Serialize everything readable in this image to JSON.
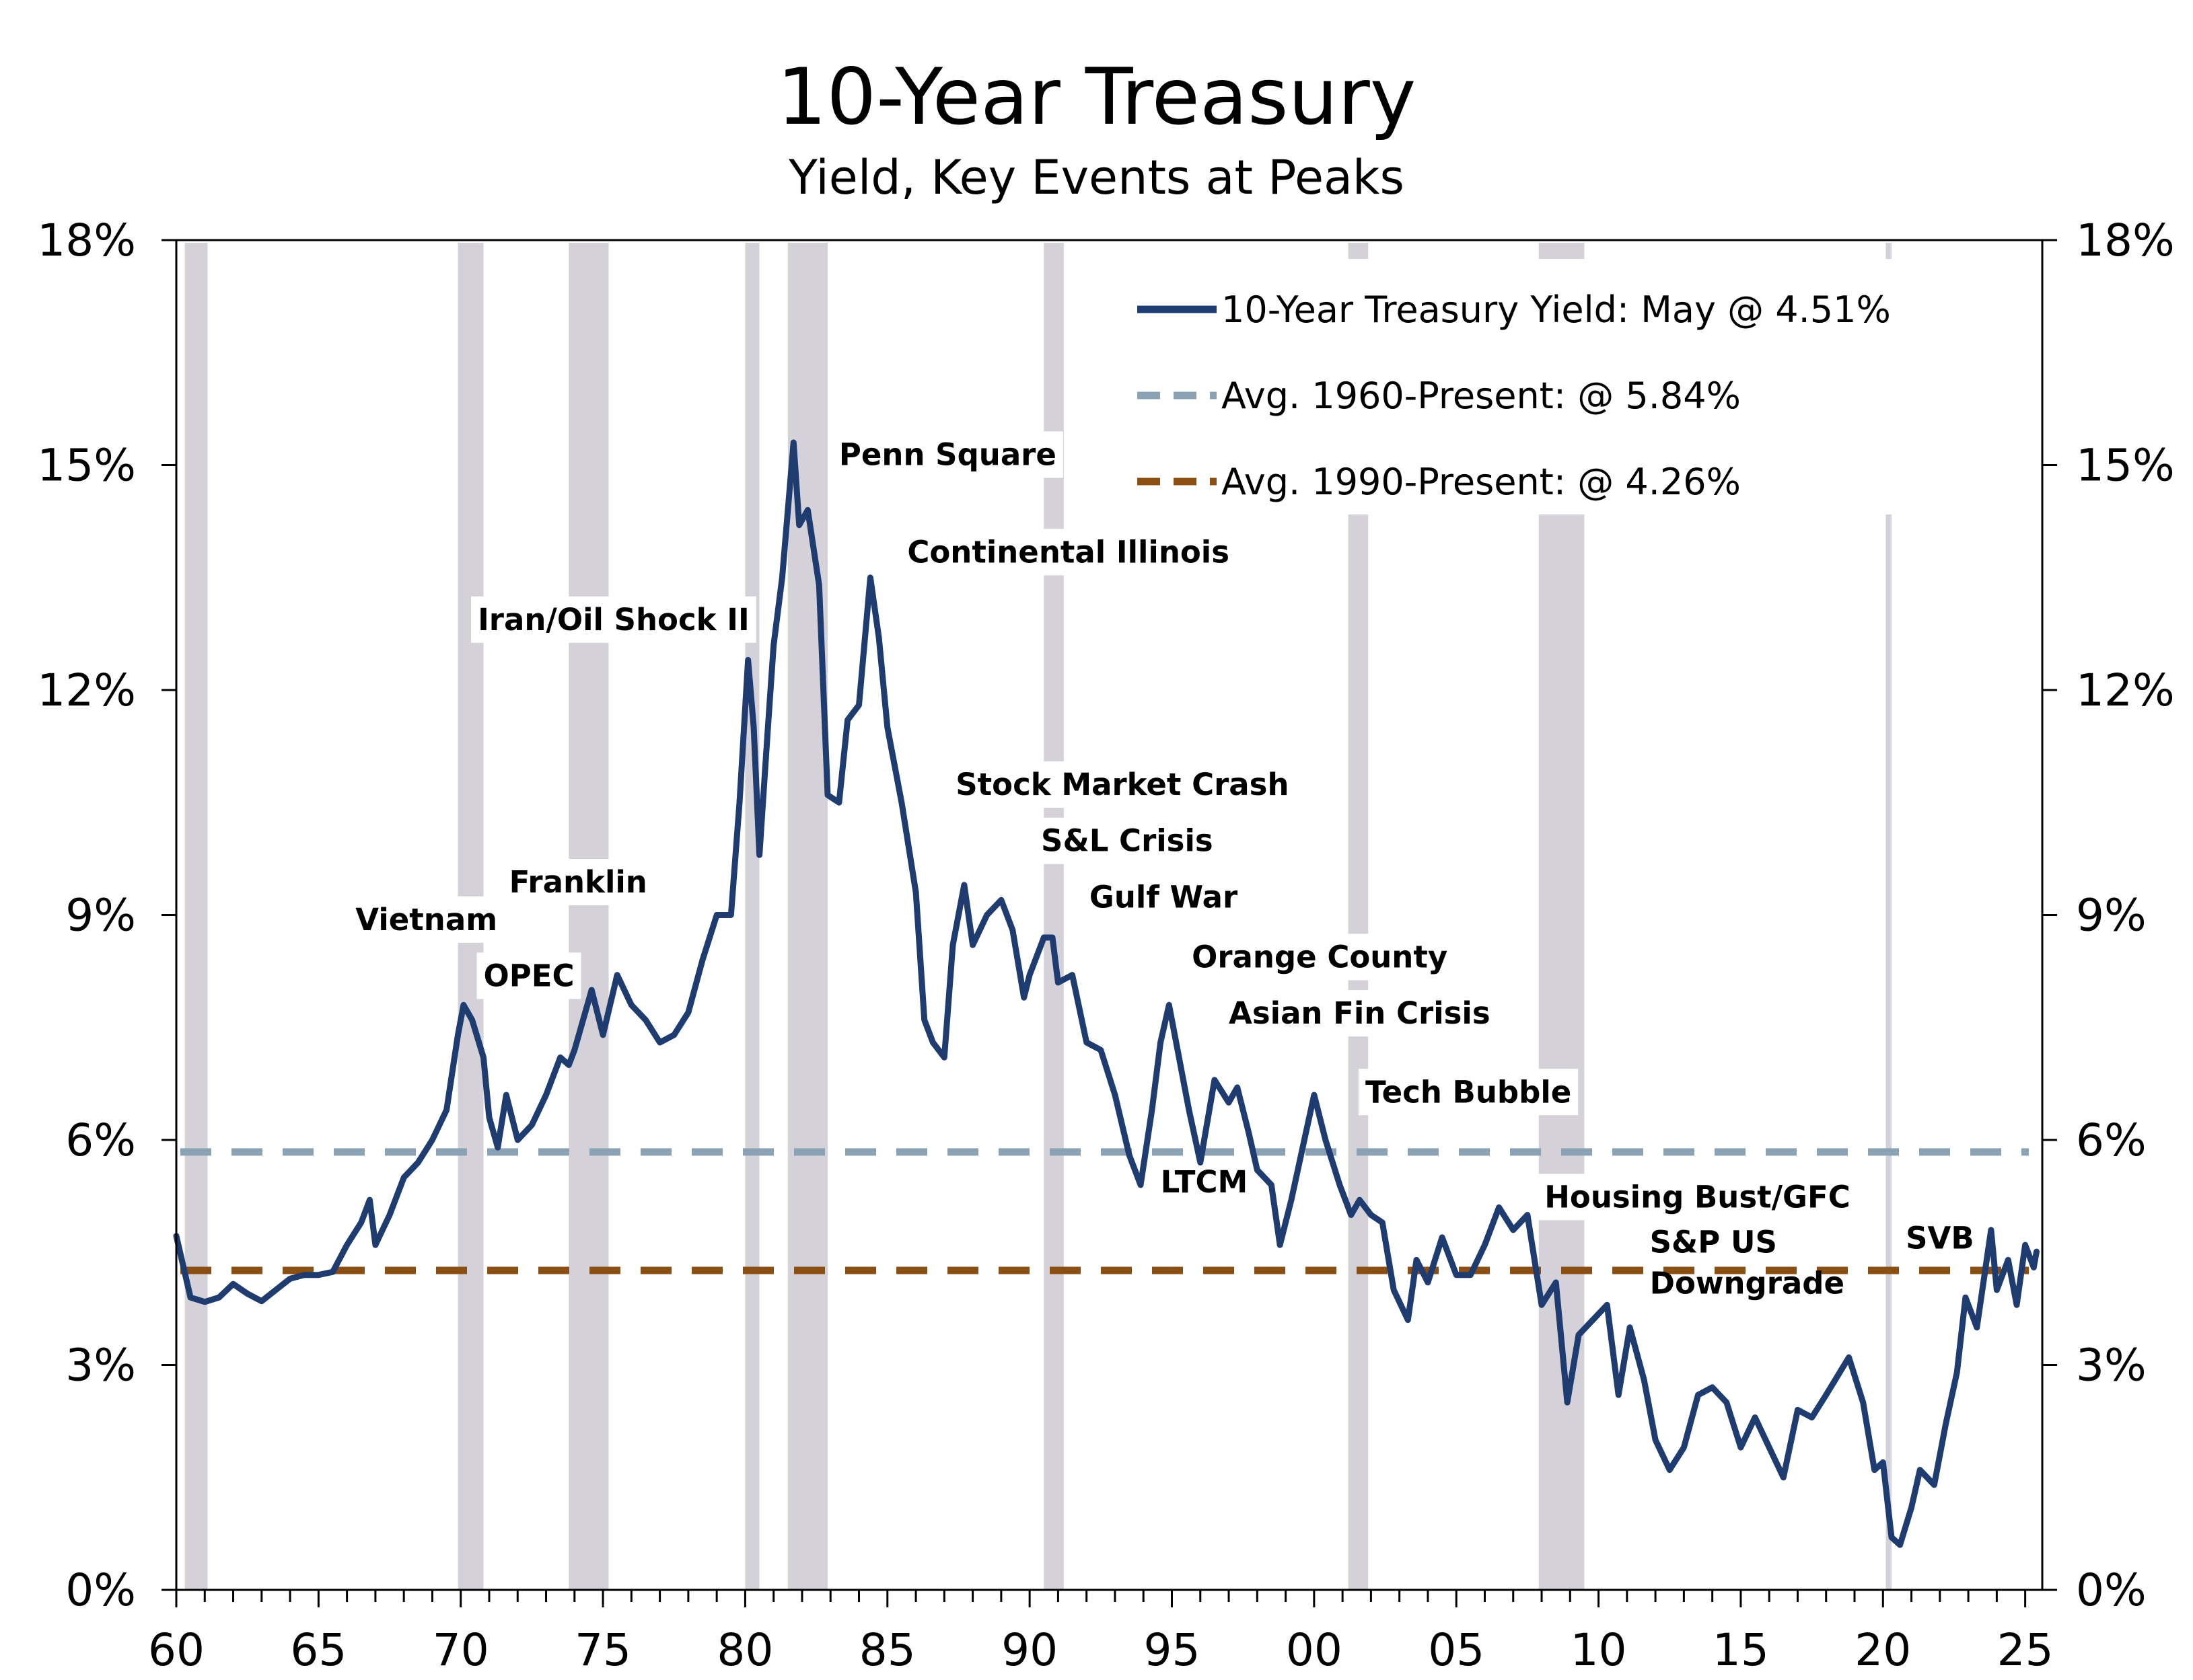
{
  "chart_data": {
    "type": "line",
    "title": "10-Year Treasury",
    "subtitle": "Yield, Key Events at Peaks",
    "xlabel": "",
    "ylabel": "",
    "xlim": [
      1960,
      2025.6
    ],
    "ylim": [
      0,
      18
    ],
    "x_ticks": [
      1960,
      1965,
      1970,
      1975,
      1980,
      1985,
      1990,
      1995,
      2000,
      2005,
      2010,
      2015,
      2020,
      2025
    ],
    "x_tick_labels": [
      "60",
      "65",
      "70",
      "75",
      "80",
      "85",
      "90",
      "95",
      "00",
      "05",
      "10",
      "15",
      "20",
      "25"
    ],
    "y_ticks": [
      0,
      3,
      6,
      9,
      12,
      15,
      18
    ],
    "y_tick_labels": [
      "0%",
      "3%",
      "6%",
      "9%",
      "12%",
      "15%",
      "18%"
    ],
    "legend_position": "top-right",
    "grid": false,
    "colors": {
      "yield_line": "#1f3c70",
      "avg_1960": "#8aa2b4",
      "avg_1990": "#8b4f14",
      "recession": "#d5d1d9"
    },
    "recessions": [
      [
        1960.3,
        1961.1
      ],
      [
        1969.9,
        1970.8
      ],
      [
        1973.8,
        1975.2
      ],
      [
        1980.0,
        1980.5
      ],
      [
        1981.5,
        1982.9
      ],
      [
        1990.5,
        1991.2
      ],
      [
        2001.2,
        2001.9
      ],
      [
        2007.9,
        2009.5
      ],
      [
        2020.1,
        2020.3
      ]
    ],
    "series": [
      {
        "name": "10-Year Treasury Yield: May @ 4.51%",
        "style": "solid",
        "points": [
          [
            1960.0,
            4.72
          ],
          [
            1960.5,
            3.9
          ],
          [
            1961.0,
            3.84
          ],
          [
            1961.5,
            3.9
          ],
          [
            1962.0,
            4.08
          ],
          [
            1962.5,
            3.95
          ],
          [
            1963.0,
            3.85
          ],
          [
            1963.5,
            4.0
          ],
          [
            1964.0,
            4.15
          ],
          [
            1964.5,
            4.2
          ],
          [
            1965.0,
            4.2
          ],
          [
            1965.5,
            4.24
          ],
          [
            1966.0,
            4.6
          ],
          [
            1966.5,
            4.9
          ],
          [
            1966.8,
            5.2
          ],
          [
            1967.0,
            4.6
          ],
          [
            1967.5,
            5.0
          ],
          [
            1968.0,
            5.5
          ],
          [
            1968.5,
            5.7
          ],
          [
            1969.0,
            6.0
          ],
          [
            1969.5,
            6.4
          ],
          [
            1969.9,
            7.4
          ],
          [
            1970.1,
            7.8
          ],
          [
            1970.4,
            7.6
          ],
          [
            1970.8,
            7.1
          ],
          [
            1971.0,
            6.3
          ],
          [
            1971.3,
            5.9
          ],
          [
            1971.6,
            6.6
          ],
          [
            1972.0,
            6.0
          ],
          [
            1972.5,
            6.2
          ],
          [
            1973.0,
            6.6
          ],
          [
            1973.5,
            7.1
          ],
          [
            1973.8,
            7.0
          ],
          [
            1974.0,
            7.2
          ],
          [
            1974.6,
            8.0
          ],
          [
            1975.0,
            7.4
          ],
          [
            1975.5,
            8.2
          ],
          [
            1976.0,
            7.8
          ],
          [
            1976.5,
            7.6
          ],
          [
            1977.0,
            7.3
          ],
          [
            1977.5,
            7.4
          ],
          [
            1978.0,
            7.7
          ],
          [
            1978.5,
            8.4
          ],
          [
            1979.0,
            9.0
          ],
          [
            1979.5,
            9.0
          ],
          [
            1979.8,
            10.5
          ],
          [
            1980.1,
            12.4
          ],
          [
            1980.3,
            11.5
          ],
          [
            1980.5,
            9.8
          ],
          [
            1980.8,
            11.5
          ],
          [
            1981.0,
            12.6
          ],
          [
            1981.3,
            13.5
          ],
          [
            1981.7,
            15.3
          ],
          [
            1981.9,
            14.2
          ],
          [
            1982.2,
            14.4
          ],
          [
            1982.6,
            13.4
          ],
          [
            1982.9,
            10.6
          ],
          [
            1983.3,
            10.5
          ],
          [
            1983.6,
            11.6
          ],
          [
            1984.0,
            11.8
          ],
          [
            1984.4,
            13.5
          ],
          [
            1984.7,
            12.7
          ],
          [
            1985.0,
            11.5
          ],
          [
            1985.5,
            10.5
          ],
          [
            1986.0,
            9.3
          ],
          [
            1986.3,
            7.6
          ],
          [
            1986.6,
            7.3
          ],
          [
            1987.0,
            7.1
          ],
          [
            1987.3,
            8.6
          ],
          [
            1987.7,
            9.4
          ],
          [
            1988.0,
            8.6
          ],
          [
            1988.5,
            9.0
          ],
          [
            1989.0,
            9.2
          ],
          [
            1989.4,
            8.8
          ],
          [
            1989.8,
            7.9
          ],
          [
            1990.0,
            8.2
          ],
          [
            1990.5,
            8.7
          ],
          [
            1990.8,
            8.7
          ],
          [
            1991.0,
            8.1
          ],
          [
            1991.5,
            8.2
          ],
          [
            1992.0,
            7.3
          ],
          [
            1992.5,
            7.2
          ],
          [
            1993.0,
            6.6
          ],
          [
            1993.5,
            5.8
          ],
          [
            1993.9,
            5.4
          ],
          [
            1994.3,
            6.4
          ],
          [
            1994.6,
            7.3
          ],
          [
            1994.9,
            7.8
          ],
          [
            1995.2,
            7.2
          ],
          [
            1995.6,
            6.4
          ],
          [
            1996.0,
            5.7
          ],
          [
            1996.5,
            6.8
          ],
          [
            1997.0,
            6.5
          ],
          [
            1997.3,
            6.7
          ],
          [
            1997.7,
            6.1
          ],
          [
            1998.0,
            5.6
          ],
          [
            1998.5,
            5.4
          ],
          [
            1998.8,
            4.6
          ],
          [
            1999.2,
            5.2
          ],
          [
            1999.6,
            5.9
          ],
          [
            2000.0,
            6.6
          ],
          [
            2000.4,
            6.0
          ],
          [
            2000.9,
            5.4
          ],
          [
            2001.3,
            5.0
          ],
          [
            2001.6,
            5.2
          ],
          [
            2002.0,
            5.0
          ],
          [
            2002.4,
            4.9
          ],
          [
            2002.8,
            4.0
          ],
          [
            2003.3,
            3.6
          ],
          [
            2003.6,
            4.4
          ],
          [
            2004.0,
            4.1
          ],
          [
            2004.5,
            4.7
          ],
          [
            2005.0,
            4.2
          ],
          [
            2005.5,
            4.2
          ],
          [
            2006.0,
            4.6
          ],
          [
            2006.5,
            5.1
          ],
          [
            2007.0,
            4.8
          ],
          [
            2007.5,
            5.0
          ],
          [
            2008.0,
            3.8
          ],
          [
            2008.5,
            4.1
          ],
          [
            2008.9,
            2.5
          ],
          [
            2009.3,
            3.4
          ],
          [
            2009.8,
            3.6
          ],
          [
            2010.3,
            3.8
          ],
          [
            2010.7,
            2.6
          ],
          [
            2011.1,
            3.5
          ],
          [
            2011.6,
            2.8
          ],
          [
            2012.0,
            2.0
          ],
          [
            2012.5,
            1.6
          ],
          [
            2013.0,
            1.9
          ],
          [
            2013.5,
            2.6
          ],
          [
            2014.0,
            2.7
          ],
          [
            2014.5,
            2.5
          ],
          [
            2015.0,
            1.9
          ],
          [
            2015.5,
            2.3
          ],
          [
            2016.0,
            1.9
          ],
          [
            2016.5,
            1.5
          ],
          [
            2017.0,
            2.4
          ],
          [
            2017.5,
            2.3
          ],
          [
            2018.0,
            2.6
          ],
          [
            2018.8,
            3.1
          ],
          [
            2019.3,
            2.5
          ],
          [
            2019.7,
            1.6
          ],
          [
            2020.0,
            1.7
          ],
          [
            2020.3,
            0.7
          ],
          [
            2020.6,
            0.6
          ],
          [
            2021.0,
            1.1
          ],
          [
            2021.3,
            1.6
          ],
          [
            2021.8,
            1.4
          ],
          [
            2022.2,
            2.2
          ],
          [
            2022.6,
            2.9
          ],
          [
            2022.9,
            3.9
          ],
          [
            2023.3,
            3.5
          ],
          [
            2023.8,
            4.8
          ],
          [
            2024.0,
            4.0
          ],
          [
            2024.4,
            4.4
          ],
          [
            2024.7,
            3.8
          ],
          [
            2025.0,
            4.6
          ],
          [
            2025.3,
            4.3
          ],
          [
            2025.4,
            4.51
          ]
        ]
      },
      {
        "name": "Avg. 1960-Present: @ 5.84%",
        "style": "dashed",
        "value": 5.84
      },
      {
        "name": "Avg. 1990-Present: @ 4.26%",
        "style": "dashed",
        "value": 4.26
      }
    ],
    "annotations": [
      {
        "text": "Penn Square",
        "x": 1983.3,
        "y": 15.0
      },
      {
        "text": "Continental Illinois",
        "x": 1985.7,
        "y": 13.7
      },
      {
        "text": "Iran/Oil Shock II",
        "x": 1970.6,
        "y": 12.8
      },
      {
        "text": "Stock Market Crash",
        "x": 1987.4,
        "y": 10.6
      },
      {
        "text": "S&L Crisis",
        "x": 1990.4,
        "y": 9.85
      },
      {
        "text": "Gulf War",
        "x": 1992.1,
        "y": 9.1
      },
      {
        "text": "Franklin",
        "x": 1971.7,
        "y": 9.3
      },
      {
        "text": "Vietnam",
        "x": 1966.3,
        "y": 8.8
      },
      {
        "text": "OPEC",
        "x": 1970.8,
        "y": 8.05
      },
      {
        "text": "Orange County",
        "x": 1995.7,
        "y": 8.3
      },
      {
        "text": "Asian Fin Crisis",
        "x": 1997.0,
        "y": 7.55
      },
      {
        "text": "Tech Bubble",
        "x": 2001.8,
        "y": 6.5
      },
      {
        "text": "LTCM",
        "x": 1994.6,
        "y": 5.3
      },
      {
        "text": "Housing Bust/GFC",
        "x": 2008.1,
        "y": 5.1
      },
      {
        "text": "S&P US",
        "x": 2011.8,
        "y": 4.5
      },
      {
        "text": "Downgrade",
        "x": 2011.8,
        "y": 3.95
      },
      {
        "text": "SVB",
        "x": 2020.8,
        "y": 4.55
      }
    ]
  }
}
